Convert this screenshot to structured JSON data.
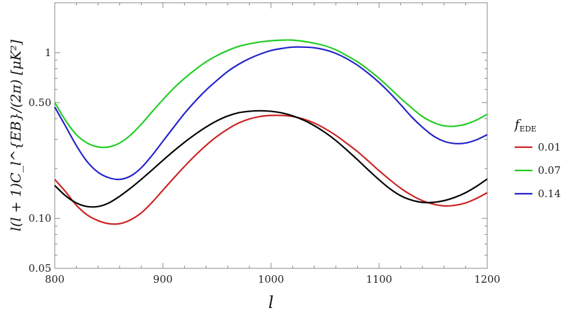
{
  "chart_data": {
    "type": "line",
    "xlabel": "l",
    "ylabel": "l(l + 1)C_l^{EB}/(2π) [μK²]",
    "xlim": [
      800,
      1200
    ],
    "ylim": [
      0.05,
      2.0
    ],
    "yscale": "log",
    "grid": false,
    "x_ticks": [
      "800",
      "900",
      "1000",
      "1100",
      "1200"
    ],
    "y_ticks": [
      "0.05",
      "0.10",
      "0.50",
      "1"
    ],
    "legend": {
      "title": "f_EDE",
      "placement": "right"
    },
    "x": [
      800,
      810,
      820,
      830,
      840,
      850,
      860,
      870,
      880,
      890,
      900,
      910,
      920,
      930,
      940,
      950,
      960,
      970,
      980,
      990,
      1000,
      1010,
      1020,
      1030,
      1040,
      1050,
      1060,
      1070,
      1080,
      1090,
      1100,
      1110,
      1120,
      1130,
      1140,
      1150,
      1160,
      1170,
      1180,
      1190,
      1200
    ],
    "series": [
      {
        "name": "0.01",
        "color": "#cc2222",
        "values": [
          0.172,
          0.145,
          0.12,
          0.105,
          0.097,
          0.093,
          0.093,
          0.098,
          0.108,
          0.125,
          0.148,
          0.175,
          0.206,
          0.24,
          0.276,
          0.312,
          0.346,
          0.376,
          0.398,
          0.412,
          0.418,
          0.418,
          0.412,
          0.398,
          0.376,
          0.348,
          0.317,
          0.284,
          0.253,
          0.222,
          0.194,
          0.171,
          0.152,
          0.138,
          0.128,
          0.122,
          0.119,
          0.12,
          0.124,
          0.132,
          0.143
        ]
      },
      {
        "name": "0.07",
        "color": "#22cc22",
        "values": [
          0.5,
          0.39,
          0.32,
          0.285,
          0.27,
          0.27,
          0.285,
          0.318,
          0.37,
          0.44,
          0.52,
          0.61,
          0.7,
          0.79,
          0.88,
          0.96,
          1.03,
          1.09,
          1.13,
          1.16,
          1.18,
          1.19,
          1.19,
          1.17,
          1.14,
          1.1,
          1.04,
          0.96,
          0.88,
          0.79,
          0.7,
          0.61,
          0.53,
          0.465,
          0.412,
          0.38,
          0.362,
          0.36,
          0.37,
          0.392,
          0.425
        ]
      },
      {
        "name": "0.14",
        "color": "#2222cc",
        "values": [
          0.47,
          0.36,
          0.275,
          0.22,
          0.19,
          0.176,
          0.172,
          0.18,
          0.202,
          0.24,
          0.292,
          0.355,
          0.43,
          0.51,
          0.595,
          0.68,
          0.77,
          0.85,
          0.92,
          0.98,
          1.03,
          1.06,
          1.08,
          1.08,
          1.07,
          1.04,
          0.99,
          0.92,
          0.84,
          0.75,
          0.66,
          0.57,
          0.485,
          0.41,
          0.355,
          0.315,
          0.292,
          0.283,
          0.285,
          0.298,
          0.32
        ]
      },
      {
        "color": "#000000",
        "values": [
          0.158,
          0.137,
          0.124,
          0.118,
          0.118,
          0.124,
          0.136,
          0.152,
          0.172,
          0.196,
          0.224,
          0.255,
          0.288,
          0.322,
          0.356,
          0.388,
          0.415,
          0.434,
          0.443,
          0.446,
          0.443,
          0.433,
          0.416,
          0.392,
          0.363,
          0.33,
          0.295,
          0.259,
          0.226,
          0.196,
          0.171,
          0.151,
          0.137,
          0.129,
          0.125,
          0.125,
          0.128,
          0.134,
          0.143,
          0.156,
          0.173
        ]
      }
    ]
  }
}
